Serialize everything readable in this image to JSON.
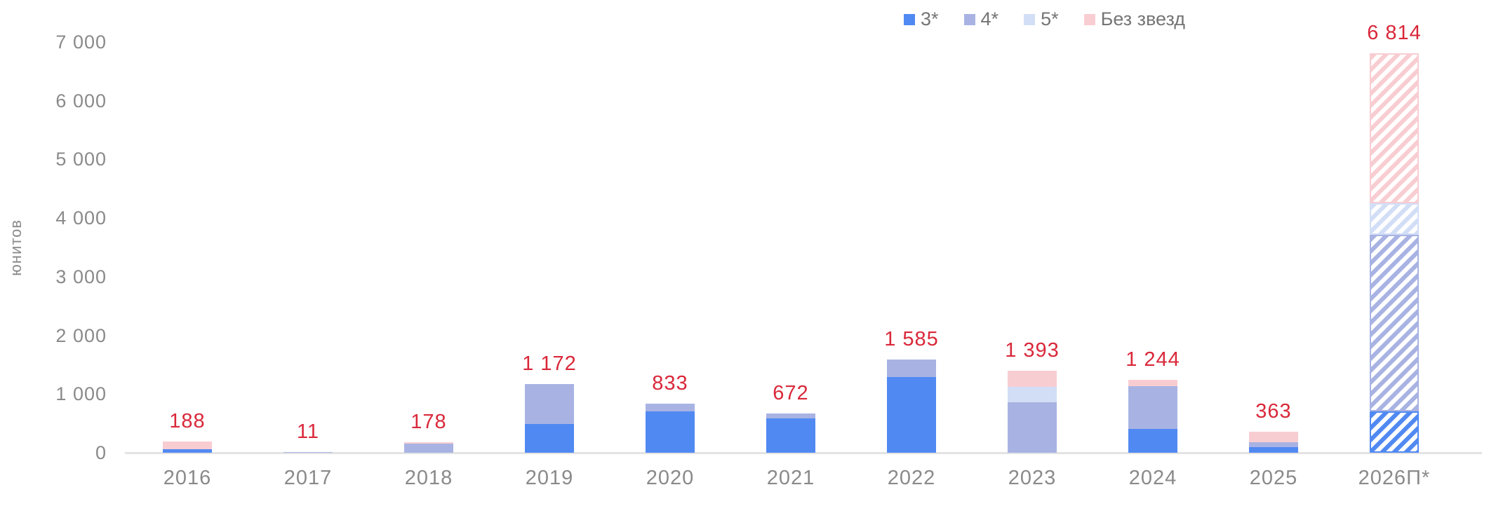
{
  "chart_data": {
    "type": "bar",
    "stacked": true,
    "title": "",
    "ylabel": "юнитов",
    "xlabel": "",
    "ylim": [
      0,
      7000
    ],
    "ytick_step": 1000,
    "ytick_labels": [
      "0",
      "1 000",
      "2 000",
      "3 000",
      "4 000",
      "5 000",
      "6 000",
      "7 000"
    ],
    "grid": "off",
    "legend_position": "top-right",
    "categories": [
      "2016",
      "2017",
      "2018",
      "2019",
      "2020",
      "2021",
      "2022",
      "2023",
      "2024",
      "2025",
      "2026П*"
    ],
    "forecast_category": "2026П*",
    "forecast_style": "diagonal-hatch",
    "series": [
      {
        "name": "3*",
        "color": "#5189f2",
        "values": [
          55,
          0,
          0,
          490,
          700,
          580,
          1290,
          0,
          410,
          90,
          710
        ]
      },
      {
        "name": "4*",
        "color": "#a8b3e3",
        "values": [
          0,
          11,
          160,
          682,
          133,
          92,
          295,
          860,
          730,
          85,
          3010
        ]
      },
      {
        "name": "5*",
        "color": "#d2def6",
        "values": [
          0,
          0,
          0,
          0,
          0,
          0,
          0,
          260,
          0,
          0,
          530
        ]
      },
      {
        "name": "Без звезд",
        "color": "#f8cdd2",
        "values": [
          133,
          0,
          18,
          0,
          0,
          0,
          0,
          273,
          104,
          188,
          2564
        ]
      }
    ],
    "totals": [
      188,
      11,
      178,
      1172,
      833,
      672,
      1585,
      1393,
      1244,
      363,
      6814
    ],
    "total_labels": [
      "188",
      "11",
      "178",
      "1 172",
      "833",
      "672",
      "1 585",
      "1 393",
      "1 244",
      "363",
      "6 814"
    ],
    "total_label_color": "#d9283a",
    "axis_text_color": "#8a8a8a",
    "axis_line_color": "#e3e3e3"
  },
  "legend": {
    "items": [
      {
        "label": "3*"
      },
      {
        "label": "4*"
      },
      {
        "label": "5*"
      },
      {
        "label": "Без звезд"
      }
    ]
  }
}
